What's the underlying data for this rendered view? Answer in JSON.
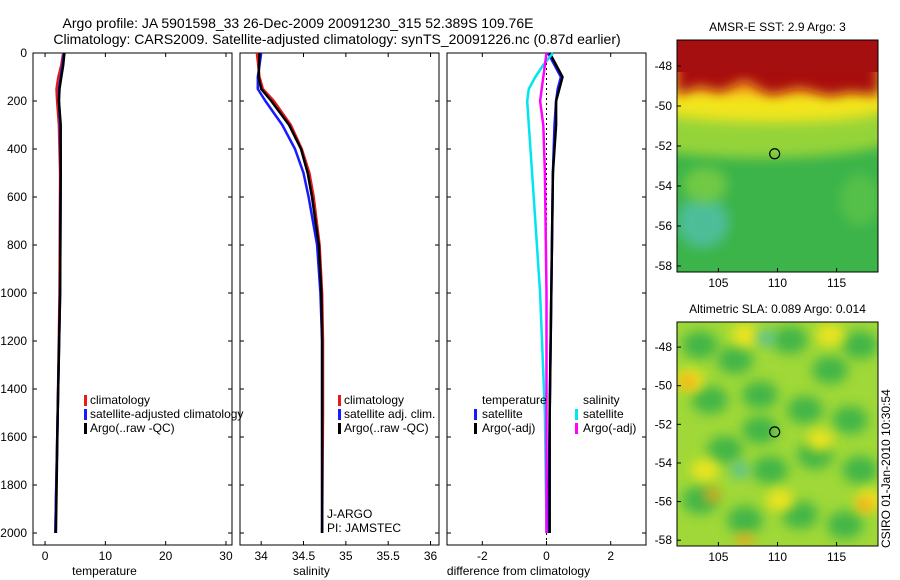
{
  "title_line1": "Argo profile: JA 5901598_33 26-Dec-2009 20091230_315 52.389S 109.76E",
  "title_line2": "Climatology: CARS2009. Satellite-adjusted climatology: synTS_20091226.nc (0.87d earlier)",
  "side_label": "CSIRO 01-Jan-2010 10:30:54",
  "colors": {
    "red": "#e41a1c",
    "blue": "#1a1aff",
    "black": "#000000",
    "cyan": "#00e5ee",
    "magenta": "#ff00ff"
  },
  "chart_data": [
    {
      "id": "temperature",
      "type": "line",
      "xlabel": "temperature",
      "xlim": [
        -2,
        31
      ],
      "xticks": [
        0,
        10,
        20,
        30
      ],
      "ylim": [
        2050,
        0
      ],
      "yticks": [
        0,
        200,
        400,
        600,
        800,
        1000,
        1200,
        1400,
        1600,
        1800,
        2000
      ],
      "series": [
        {
          "name": "climatology",
          "color": "red",
          "depth": [
            0,
            50,
            100,
            150,
            200,
            300,
            500,
            1000,
            1500,
            2000
          ],
          "values": [
            3.0,
            2.7,
            2.2,
            1.9,
            2.0,
            2.3,
            2.5,
            2.4,
            2.1,
            1.7
          ]
        },
        {
          "name": "satellite-adjusted climatology",
          "color": "blue",
          "depth": [
            0,
            50,
            100,
            150,
            200,
            300,
            500,
            1000,
            1500,
            2000
          ],
          "values": [
            3.1,
            2.9,
            2.6,
            2.3,
            2.3,
            2.5,
            2.6,
            2.5,
            2.1,
            1.7
          ]
        },
        {
          "name": "Argo(..raw -QC)",
          "color": "black",
          "depth": [
            0,
            50,
            100,
            150,
            200,
            300,
            500,
            1000,
            1500,
            2000
          ],
          "values": [
            3.2,
            3.0,
            2.7,
            2.4,
            2.3,
            2.6,
            2.6,
            2.5,
            2.1,
            1.8
          ]
        }
      ],
      "legend": [
        "climatology",
        "satellite-adjusted climatology",
        "Argo(..raw -QC)"
      ],
      "legend_position": "bottom-right"
    },
    {
      "id": "salinity",
      "type": "line",
      "xlabel": "salinity",
      "xlim": [
        33.75,
        36.1
      ],
      "xticks": [
        34,
        34.5,
        35,
        35.5,
        36
      ],
      "xticklabels": [
        "34",
        "34.5",
        "35",
        "35.5",
        "36"
      ],
      "ylim": [
        2050,
        0
      ],
      "series": [
        {
          "name": "climatology",
          "color": "red",
          "depth": [
            0,
            100,
            150,
            200,
            300,
            400,
            500,
            600,
            800,
            1000,
            1200,
            1500,
            2000
          ],
          "values": [
            33.95,
            33.98,
            34.02,
            34.15,
            34.35,
            34.48,
            34.57,
            34.62,
            34.69,
            34.72,
            34.73,
            34.73,
            34.72
          ]
        },
        {
          "name": "satellite adj. clim.",
          "color": "blue",
          "depth": [
            0,
            100,
            150,
            200,
            300,
            400,
            500,
            600,
            800,
            1000,
            1200,
            1500,
            2000
          ],
          "values": [
            34.0,
            33.96,
            33.96,
            34.05,
            34.25,
            34.4,
            34.5,
            34.56,
            34.66,
            34.7,
            34.72,
            34.72,
            34.72
          ]
        },
        {
          "name": "Argo(..raw -QC)",
          "color": "black",
          "depth": [
            0,
            100,
            150,
            200,
            300,
            400,
            500,
            600,
            800,
            1000,
            1200,
            1500,
            2000
          ],
          "values": [
            33.98,
            33.97,
            34.0,
            34.12,
            34.33,
            34.47,
            34.55,
            34.6,
            34.68,
            34.71,
            34.72,
            34.72,
            34.72
          ]
        }
      ],
      "legend": [
        "climatology",
        "satellite adj. clim.",
        "Argo(..raw -QC)"
      ],
      "legend_position": "bottom-right",
      "annotation": [
        "J-ARGO",
        "PI: JAMSTEC"
      ]
    },
    {
      "id": "difference",
      "type": "line",
      "xlabel": "difference from climatology",
      "xlim": [
        -3.1,
        3.1
      ],
      "xticks": [
        -2,
        0,
        2
      ],
      "ylim": [
        2050,
        0
      ],
      "series": [
        {
          "name": "temperature satellite",
          "color": "blue",
          "depth": [
            0,
            50,
            100,
            150,
            200,
            300,
            500,
            1000,
            1500,
            2000
          ],
          "values": [
            0.05,
            0.25,
            0.45,
            0.35,
            0.3,
            0.25,
            0.2,
            0.15,
            0.1,
            0.05
          ]
        },
        {
          "name": "temperature Argo(-adj)",
          "color": "black",
          "depth": [
            0,
            50,
            100,
            150,
            200,
            300,
            500,
            1000,
            1500,
            2000
          ],
          "values": [
            0.1,
            0.3,
            0.5,
            0.4,
            0.3,
            0.3,
            0.2,
            0.15,
            0.1,
            0.1
          ]
        },
        {
          "name": "salinity satellite",
          "color": "cyan",
          "depth": [
            0,
            50,
            100,
            150,
            200,
            300,
            500,
            1000,
            1500,
            2000
          ],
          "values": [
            0.2,
            -0.1,
            -0.35,
            -0.55,
            -0.6,
            -0.55,
            -0.45,
            -0.2,
            -0.05,
            0.0
          ]
        },
        {
          "name": "salinity Argo(-adj)",
          "color": "magenta",
          "depth": [
            0,
            50,
            100,
            150,
            200,
            300,
            500,
            1000,
            1500,
            2000
          ],
          "values": [
            0.0,
            -0.05,
            -0.1,
            -0.15,
            -0.2,
            -0.1,
            -0.05,
            0.0,
            0.0,
            0.0
          ]
        }
      ],
      "legend_groups": [
        {
          "title": "temperature",
          "entries": [
            "satellite",
            "Argo(-adj)"
          ]
        },
        {
          "title": "salinity",
          "entries": [
            "satellite",
            "Argo(-adj)"
          ]
        }
      ]
    },
    {
      "id": "sst_map",
      "type": "heatmap",
      "title": "AMSR-E SST: 2.9 Argo: 3",
      "xlim": [
        101.5,
        118.5
      ],
      "ylim": [
        -58.3,
        -46.7
      ],
      "xticks": [
        105,
        110,
        115
      ],
      "yticks": [
        -48,
        -50,
        -52,
        -54,
        -56,
        -58
      ],
      "marker": {
        "lon": 109.76,
        "lat": -52.389
      }
    },
    {
      "id": "sla_map",
      "type": "heatmap",
      "title": "Altimetric SLA: 0.089 Argo: 0.014",
      "xlim": [
        101.5,
        118.5
      ],
      "ylim": [
        -58.3,
        -46.7
      ],
      "xticks": [
        105,
        110,
        115
      ],
      "yticks": [
        -48,
        -50,
        -52,
        -54,
        -56,
        -58
      ],
      "marker": {
        "lon": 109.76,
        "lat": -52.389
      }
    }
  ]
}
